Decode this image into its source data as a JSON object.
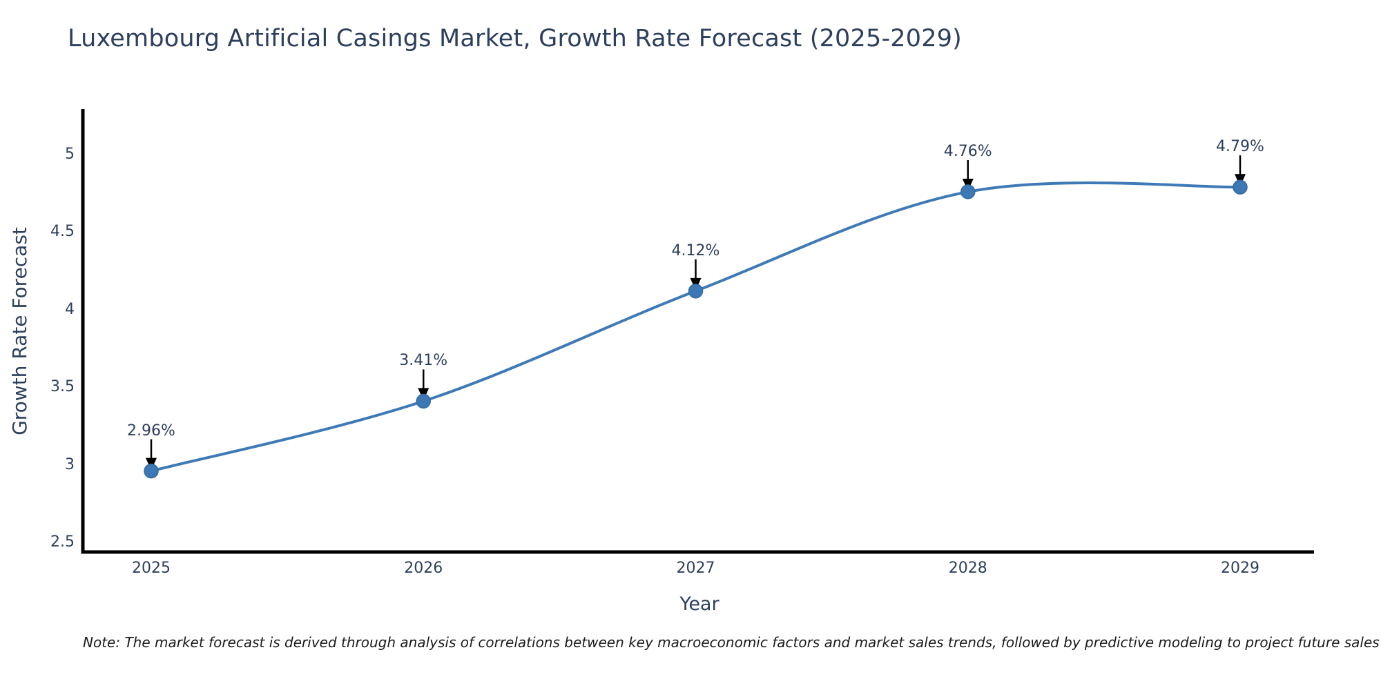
{
  "chart_data": {
    "type": "line",
    "title": "Luxembourg Artificial Casings Market, Growth Rate Forecast (2025-2029)",
    "xlabel": "Year",
    "ylabel": "Growth Rate Forecast",
    "x": [
      "2025",
      "2026",
      "2027",
      "2028",
      "2029"
    ],
    "values": [
      2.96,
      3.41,
      4.12,
      4.76,
      4.79
    ],
    "point_labels": [
      "2.96%",
      "3.41%",
      "4.12%",
      "4.76%",
      "4.79%"
    ],
    "yticks": [
      5,
      4.5,
      4,
      3.5,
      3,
      2.5
    ],
    "ytick_labels": [
      "5",
      "4.5",
      "4",
      "3.5",
      "3",
      "2.5"
    ],
    "ylim": [
      2.45,
      5.3
    ],
    "grid": false,
    "legend_position": "none",
    "line_color": "#3e7ab6",
    "marker_color": "#3c78b4",
    "marker_edge_color": "#336aa0",
    "arrow_color": "#000000",
    "axis_color": "#000000",
    "text_color": "#2c3f5e"
  },
  "footnote": {
    "text": "Note: The market forecast is derived through analysis of correlations between key macroeconomic factors and market sales trends, followed by predictive modeling to project future sales"
  }
}
